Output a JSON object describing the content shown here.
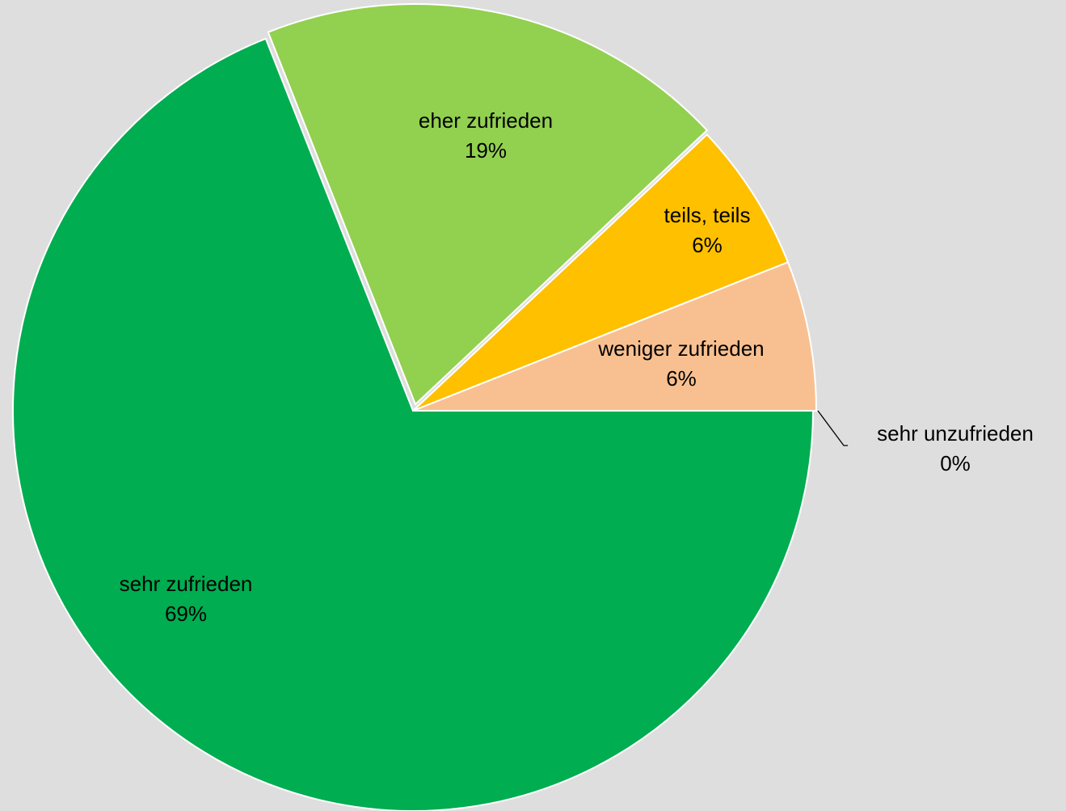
{
  "chart_data": {
    "type": "pie",
    "slices": [
      {
        "label": "sehr zufrieden",
        "value": 69,
        "value_label": "69%",
        "color": "#00ad50"
      },
      {
        "label": "eher zufrieden",
        "value": 19,
        "value_label": "19%",
        "color": "#92d050"
      },
      {
        "label": "teils, teils",
        "value": 6,
        "value_label": "6%",
        "color": "#ffc000"
      },
      {
        "label": "weniger zufrieden",
        "value": 6,
        "value_label": "6%",
        "color": "#f8c090"
      },
      {
        "label": "sehr unzufrieden",
        "value": 0,
        "value_label": "0%",
        "color": "#92d050"
      }
    ],
    "legend": "none",
    "labels": "on slices",
    "background": "#dedede"
  }
}
